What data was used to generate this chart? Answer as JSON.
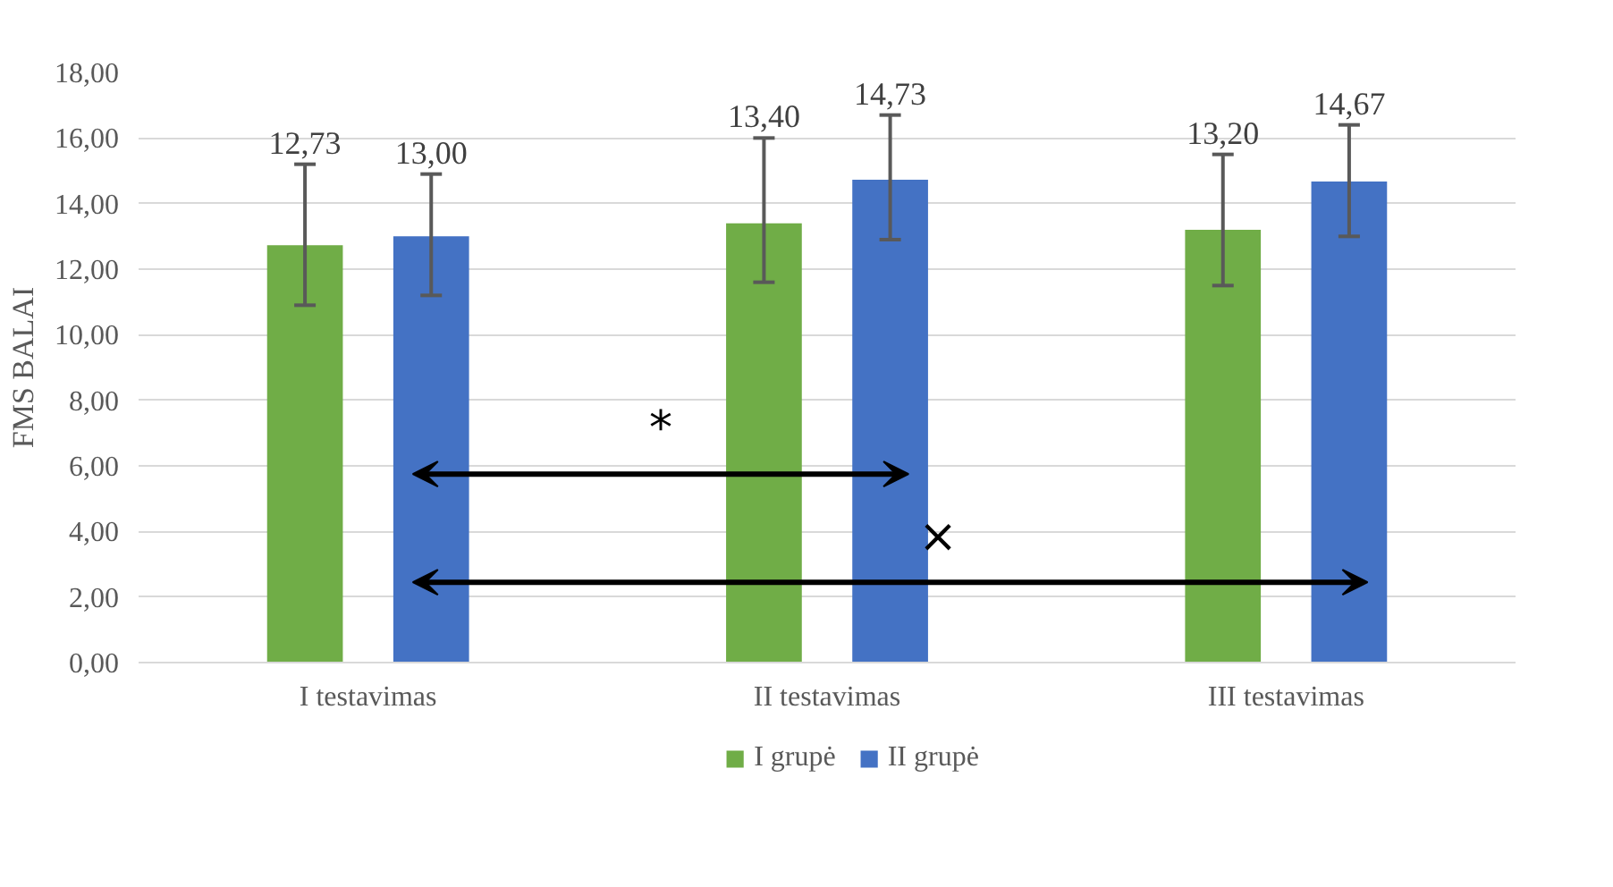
{
  "chart_data": {
    "type": "bar",
    "ylabel": "FMS BALAI",
    "categories": [
      "I testavimas",
      "II testavimas",
      "III testavimas"
    ],
    "series": [
      {
        "name": "I grupė",
        "color": "#70ad47",
        "values": [
          12.73,
          13.4,
          13.2
        ],
        "value_labels": [
          "12,73",
          "13,40",
          "13,20"
        ],
        "errors": [
          [
            10.9,
            15.2
          ],
          [
            11.6,
            16.0
          ],
          [
            11.5,
            15.5
          ]
        ]
      },
      {
        "name": "II grupė",
        "color": "#4472c4",
        "values": [
          13.0,
          14.73,
          14.67
        ],
        "value_labels": [
          "13,00",
          "14,73",
          "14,67"
        ],
        "errors": [
          [
            11.2,
            14.9
          ],
          [
            12.9,
            16.7
          ],
          [
            13.0,
            16.4
          ]
        ]
      }
    ],
    "ylim": [
      0,
      18
    ],
    "yticks": [
      {
        "value": 0,
        "label": "0,00"
      },
      {
        "value": 2,
        "label": "2,00"
      },
      {
        "value": 4,
        "label": "4,00"
      },
      {
        "value": 6,
        "label": "6,00"
      },
      {
        "value": 8,
        "label": "8,00"
      },
      {
        "value": 10,
        "label": "10,00"
      },
      {
        "value": 12,
        "label": "12,00"
      },
      {
        "value": 14,
        "label": "14,00"
      },
      {
        "value": 16,
        "label": "16,00"
      },
      {
        "value": 18,
        "label": "18,00"
      }
    ],
    "grid": "y",
    "legend": "bottom",
    "annotations": [
      "*",
      "×"
    ]
  }
}
